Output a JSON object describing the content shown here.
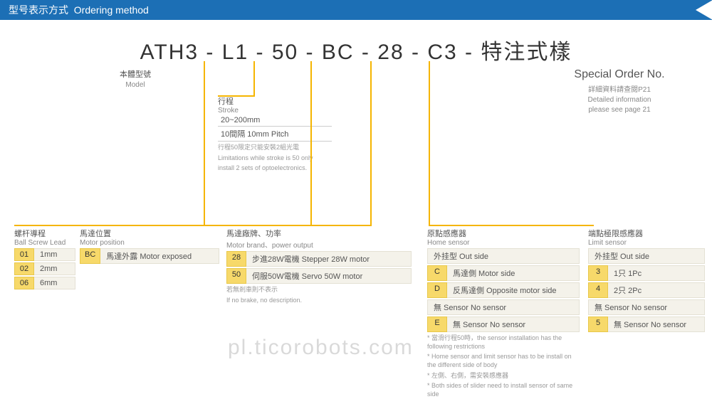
{
  "header": {
    "cn": "型号表示方式",
    "en": "Ordering method"
  },
  "formula": {
    "parts": [
      "ATH3",
      "-",
      "L1",
      "-",
      "50",
      "-",
      "BC",
      "-",
      "28",
      "-",
      "C3",
      "-",
      "特注式樣"
    ],
    "fontsize": 30,
    "accent_color": "#f5b500"
  },
  "model": {
    "cn": "本體型號",
    "en": "Model"
  },
  "special": {
    "title_en": "Special Order No.",
    "note_cn": "詳細資料請查閱P21",
    "note_en1": "Detailed information",
    "note_en2": "please see page 21"
  },
  "stroke": {
    "title_cn": "行程",
    "title_en": "Stroke",
    "line1": "20~200mm",
    "line2": "10間隔 10mm Pitch",
    "note_cn": "行程50限定只能安裝2組光電",
    "note_en1": "Limitations while stroke is 50 only",
    "note_en2": "install 2 sets of optoelectronics."
  },
  "ballscrew": {
    "title_cn": "螺杆導程",
    "title_en": "Ball Screw Lead",
    "rows": [
      {
        "code": "01",
        "desc": "1mm"
      },
      {
        "code": "02",
        "desc": "2mm"
      },
      {
        "code": "06",
        "desc": "6mm"
      }
    ]
  },
  "motorpos": {
    "title_cn": "馬達位置",
    "title_en": "Motor position",
    "rows": [
      {
        "code": "BC",
        "desc": "馬達外露 Motor exposed"
      }
    ]
  },
  "motorbrand": {
    "title_cn": "馬達廠牌、功率",
    "title_en": "Motor brand、power output",
    "rows": [
      {
        "code": "28",
        "desc": "步進28W電機 Stepper 28W motor"
      },
      {
        "code": "50",
        "desc": "伺服50W電機 Servo 50W motor"
      }
    ],
    "note_cn": "若無剎車則不表示",
    "note_en": "If no brake, no description."
  },
  "homesensor": {
    "title_cn": "原點感應器",
    "title_en": "Home sensor",
    "rows": [
      {
        "code": "",
        "desc": "外挂型 Out side"
      },
      {
        "code": "C",
        "desc": "馬達側 Motor side"
      },
      {
        "code": "D",
        "desc": "反馬達側 Opposite motor side"
      },
      {
        "code": "",
        "desc": "無 Sensor No sensor"
      },
      {
        "code": "E",
        "desc": "無 Sensor No sensor"
      }
    ],
    "note1": "* 當滑行程50時，the sensor installation has the following restrictions",
    "note2": "* Home sensor and limit sensor has to be install on the different side of body",
    "note3": "* 左側、右側，需安裝感應器",
    "note4": "* Both sides of slider need to install sensor of same side"
  },
  "limitsensor": {
    "title_cn": "端點極限感應器",
    "title_en": "Limit sensor",
    "rows": [
      {
        "code": "",
        "desc": "外挂型 Out side"
      },
      {
        "code": "3",
        "desc": "1只 1Pc"
      },
      {
        "code": "4",
        "desc": "2只 2Pc"
      },
      {
        "code": "",
        "desc": "無 Sensor No sensor"
      },
      {
        "code": "5",
        "desc": "無 Sensor No sensor"
      }
    ]
  },
  "watermark": "pl.ticorobots.com",
  "colors": {
    "header_bg": "#1c6fb5",
    "accent": "#f5b500",
    "code_bg": "#f7d96a",
    "desc_bg": "#f4f2ea"
  }
}
